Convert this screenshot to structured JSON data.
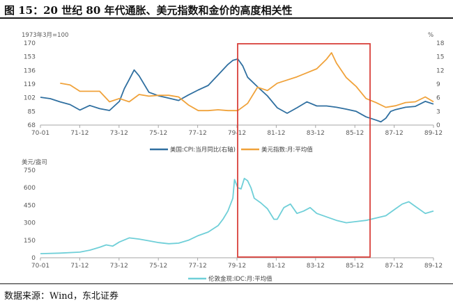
{
  "figure": {
    "title": "图 15：20 世纪 80 年代通胀、美元指数和金价的高度相关性",
    "source": "数据来源：Wind，东北证券"
  },
  "colors": {
    "blue": "#2f6fa0",
    "orange": "#f0a23a",
    "teal": "#6fcfd8",
    "highlight": "#d9403a",
    "axis": "#a6a6a6"
  },
  "chart_data": [
    {
      "type": "line",
      "x_ticks": [
        "70-01",
        "71-12",
        "73-12",
        "75-12",
        "77-12",
        "79-12",
        "81-12",
        "83-12",
        "85-12",
        "87-12",
        "89-12"
      ],
      "left_axis": {
        "unit": "1973年3月=100",
        "ticks": [
          "68",
          "85",
          "102",
          "119",
          "136",
          "153",
          "170"
        ],
        "ylim": [
          68,
          170
        ]
      },
      "right_axis": {
        "unit": "%",
        "ticks": [
          "0",
          "3",
          "6",
          "9",
          "12",
          "15",
          "18"
        ],
        "ylim": [
          0,
          18
        ]
      },
      "x_range": [
        0,
        239
      ],
      "series": [
        {
          "name": "美国:CPI:当月同比(右轴)",
          "axis": "right",
          "x": [
            0,
            6,
            12,
            18,
            24,
            30,
            36,
            42,
            48,
            51,
            54,
            57,
            60,
            66,
            72,
            78,
            84,
            90,
            96,
            102,
            108,
            114,
            117,
            120,
            123,
            126,
            132,
            138,
            144,
            150,
            156,
            162,
            168,
            174,
            180,
            186,
            192,
            198,
            204,
            207,
            210,
            213,
            216,
            222,
            228,
            234,
            239
          ],
          "y": [
            6.1,
            5.8,
            5.1,
            4.5,
            3.3,
            4.3,
            3.6,
            3.2,
            5.2,
            8.0,
            10.0,
            12.1,
            10.8,
            7.2,
            6.4,
            5.9,
            5.4,
            6.6,
            7.7,
            8.7,
            11.0,
            13.3,
            14.2,
            14.5,
            13.0,
            10.5,
            8.4,
            6.4,
            3.8,
            2.6,
            3.8,
            5.1,
            4.2,
            4.2,
            3.9,
            3.5,
            3.0,
            1.8,
            1.1,
            0.7,
            1.5,
            3.0,
            3.4,
            3.9,
            4.1,
            5.2,
            4.6
          ]
        },
        {
          "name": "美元指数:月:平均值",
          "axis": "left",
          "x": [
            12,
            18,
            24,
            30,
            36,
            42,
            48,
            54,
            60,
            66,
            72,
            78,
            84,
            90,
            96,
            102,
            108,
            114,
            120,
            126,
            132,
            138,
            144,
            150,
            156,
            162,
            168,
            174,
            177,
            180,
            186,
            192,
            198,
            204,
            210,
            216,
            222,
            228,
            234,
            239
          ],
          "y": [
            120,
            118,
            110,
            110,
            110,
            97,
            101,
            97,
            106,
            104,
            105,
            105,
            103,
            93,
            86,
            86,
            87,
            86,
            86,
            95,
            115,
            111,
            120,
            124,
            128,
            133,
            138,
            150,
            158,
            145,
            127,
            116,
            101,
            96,
            90,
            92,
            96,
            97,
            103,
            97
          ]
        }
      ]
    },
    {
      "type": "line",
      "x_ticks": [
        "70-01",
        "71-12",
        "73-12",
        "75-12",
        "77-12",
        "79-12",
        "81-12",
        "83-12",
        "85-12",
        "87-12",
        "89-12"
      ],
      "left_axis": {
        "unit": "美元/盎司",
        "ticks": [
          "0",
          "150",
          "300",
          "450",
          "600",
          "750"
        ],
        "ylim": [
          0,
          750
        ]
      },
      "x_range": [
        0,
        239
      ],
      "series": [
        {
          "name": "伦敦金现:IDC:月:平均值",
          "axis": "left",
          "x": [
            0,
            12,
            24,
            30,
            36,
            40,
            44,
            48,
            54,
            60,
            66,
            72,
            78,
            84,
            90,
            96,
            102,
            108,
            111,
            114,
            117,
            118,
            120,
            122,
            124,
            126,
            128,
            130,
            134,
            138,
            142,
            144,
            148,
            152,
            156,
            160,
            164,
            168,
            174,
            180,
            186,
            192,
            198,
            204,
            210,
            216,
            220,
            224,
            228,
            234,
            239
          ],
          "y": [
            35,
            40,
            48,
            65,
            90,
            110,
            100,
            135,
            170,
            160,
            145,
            130,
            120,
            125,
            150,
            190,
            220,
            275,
            330,
            400,
            510,
            670,
            600,
            590,
            680,
            660,
            600,
            510,
            470,
            420,
            330,
            330,
            430,
            460,
            380,
            400,
            430,
            380,
            350,
            320,
            300,
            310,
            320,
            340,
            360,
            420,
            460,
            480,
            440,
            380,
            400
          ]
        }
      ]
    }
  ],
  "legend": {
    "cpi": "美国:CPI:当月同比(右轴)",
    "dxy": "美元指数:月:平均值",
    "gold": "伦敦金现:IDC:月:平均值"
  }
}
